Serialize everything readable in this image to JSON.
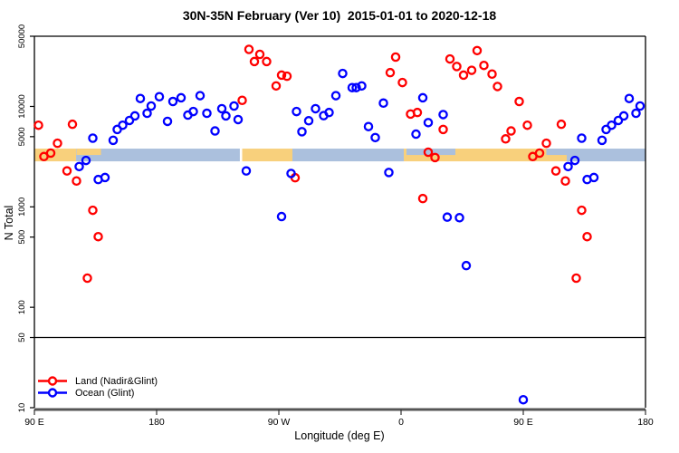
{
  "chart_data": {
    "type": "scatter",
    "title": "30N-35N February (Ver 10)  2015-01-01 to 2020-12-18",
    "xlabel": "Longitude (deg E)",
    "ylabel": "N Total",
    "y_scale": "log10",
    "ylim": [
      10,
      50000
    ],
    "y_ticks": [
      50000,
      10000,
      5000,
      1000,
      500,
      100,
      50,
      10
    ],
    "x_axis_span_deg": 450,
    "x_axis_note": "axis starts at 90E and wraps eastward 450 degrees; lons 90E-180E appear twice",
    "x_ticks": [
      {
        "deg": 0,
        "label": "90 E"
      },
      {
        "deg": 90,
        "label": "180"
      },
      {
        "deg": 180,
        "label": "90 W"
      },
      {
        "deg": 270,
        "label": "0"
      },
      {
        "deg": 360,
        "label": "90 E"
      },
      {
        "deg": 450,
        "label": "180"
      }
    ],
    "reference_line_value": 50,
    "grid": false,
    "legend_position": "bottom-left",
    "legend": [
      {
        "label": "Land (Nadir&Glint)",
        "color": "#ff0000"
      },
      {
        "label": "Ocean (Glint)",
        "color": "#0000ff"
      }
    ],
    "surface_band": {
      "value_range": [
        2840,
        3800
      ],
      "land_color": "#f8d07c",
      "ocean_color": "#abc0dd",
      "gap_color": "#ffffff",
      "segments": [
        {
          "from": 0,
          "to": 30.7,
          "type": "land"
        },
        {
          "from": 30.7,
          "to": 151.3,
          "type": "ocean"
        },
        {
          "from": 151.3,
          "to": 153,
          "type": "gap"
        },
        {
          "from": 153,
          "to": 190,
          "type": "land"
        },
        {
          "from": 190,
          "to": 272,
          "type": "ocean"
        },
        {
          "from": 272,
          "to": 392,
          "type": "land"
        },
        {
          "from": 392,
          "to": 450,
          "type": "ocean"
        }
      ],
      "patches": [
        {
          "from": 31,
          "to": 49,
          "half": "top",
          "type": "land"
        },
        {
          "from": 274,
          "to": 310,
          "half": "top",
          "type": "ocean"
        },
        {
          "from": 377,
          "to": 401,
          "half": "top",
          "type": "ocean"
        }
      ]
    },
    "series": [
      {
        "name": "Land (Nadir&Glint)",
        "color": "#ff0000",
        "points": [
          [
            3,
            6500
          ],
          [
            7,
            3170
          ],
          [
            12,
            3430
          ],
          [
            17,
            4300
          ],
          [
            24,
            2280
          ],
          [
            28,
            6640
          ],
          [
            31,
            1810
          ],
          [
            39,
            195
          ],
          [
            43,
            925
          ],
          [
            47,
            505
          ],
          [
            153,
            11500
          ],
          [
            158,
            37000
          ],
          [
            162,
            28000
          ],
          [
            166,
            33000
          ],
          [
            171,
            28000
          ],
          [
            178,
            16000
          ],
          [
            182,
            20500
          ],
          [
            186,
            20000
          ],
          [
            192,
            1950
          ],
          [
            262,
            21700
          ],
          [
            266,
            31000
          ],
          [
            271,
            17300
          ],
          [
            277,
            8400
          ],
          [
            282,
            8700
          ],
          [
            286,
            1210
          ],
          [
            290,
            3500
          ],
          [
            295,
            3100
          ],
          [
            301,
            5900
          ],
          [
            306,
            29700
          ],
          [
            311,
            25000
          ],
          [
            316,
            20500
          ],
          [
            322,
            22900
          ],
          [
            326,
            36000
          ],
          [
            331,
            25600
          ],
          [
            337,
            21000
          ],
          [
            341,
            15800
          ],
          [
            347,
            4750
          ],
          [
            351,
            5700
          ],
          [
            357,
            11200
          ],
          [
            363,
            6500
          ],
          [
            367,
            3170
          ],
          [
            372,
            3430
          ],
          [
            377,
            4300
          ],
          [
            384,
            2280
          ],
          [
            388,
            6640
          ],
          [
            391,
            1810
          ],
          [
            399,
            195
          ],
          [
            403,
            925
          ],
          [
            407,
            505
          ]
        ]
      },
      {
        "name": "Ocean (Glint)",
        "color": "#0000ff",
        "points": [
          [
            33,
            2520
          ],
          [
            38,
            2900
          ],
          [
            43,
            4830
          ],
          [
            47,
            1870
          ],
          [
            52,
            1960
          ],
          [
            58,
            4600
          ],
          [
            61,
            5900
          ],
          [
            65,
            6500
          ],
          [
            70,
            7250
          ],
          [
            74,
            8050
          ],
          [
            78,
            12000
          ],
          [
            83,
            8550
          ],
          [
            86,
            10100
          ],
          [
            92,
            12500
          ],
          [
            98,
            7100
          ],
          [
            102,
            11200
          ],
          [
            108,
            12200
          ],
          [
            113,
            8200
          ],
          [
            117,
            8900
          ],
          [
            122,
            12800
          ],
          [
            127,
            8550
          ],
          [
            133,
            5700
          ],
          [
            138,
            9500
          ],
          [
            141,
            8050
          ],
          [
            147,
            10100
          ],
          [
            150,
            7400
          ],
          [
            156,
            2280
          ],
          [
            182,
            800
          ],
          [
            189,
            2150
          ],
          [
            193,
            8900
          ],
          [
            197,
            5600
          ],
          [
            202,
            7200
          ],
          [
            207,
            9500
          ],
          [
            213,
            8100
          ],
          [
            217,
            8700
          ],
          [
            222,
            12800
          ],
          [
            227,
            21300
          ],
          [
            234,
            15400
          ],
          [
            237,
            15400
          ],
          [
            241,
            16000
          ],
          [
            246,
            6300
          ],
          [
            251,
            4900
          ],
          [
            257,
            10800
          ],
          [
            261,
            2200
          ],
          [
            281,
            5300
          ],
          [
            286,
            12200
          ],
          [
            290,
            6900
          ],
          [
            301,
            8300
          ],
          [
            304,
            790
          ],
          [
            313,
            780
          ],
          [
            318,
            260
          ],
          [
            360,
            12
          ],
          [
            393,
            2520
          ],
          [
            398,
            2900
          ],
          [
            403,
            4830
          ],
          [
            407,
            1870
          ],
          [
            412,
            1960
          ],
          [
            418,
            4600
          ],
          [
            421,
            5900
          ],
          [
            425,
            6500
          ],
          [
            430,
            7250
          ],
          [
            434,
            8050
          ],
          [
            438,
            12000
          ],
          [
            443,
            8550
          ],
          [
            446,
            10100
          ]
        ]
      }
    ]
  }
}
